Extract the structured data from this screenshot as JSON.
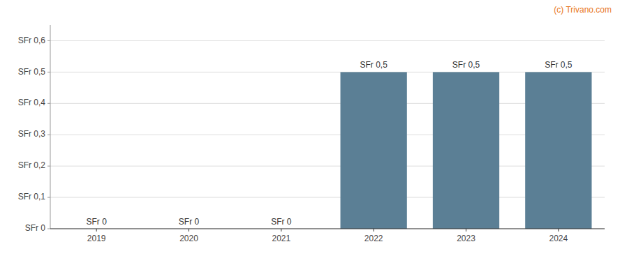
{
  "chart_data": {
    "type": "bar",
    "categories": [
      "2019",
      "2020",
      "2021",
      "2022",
      "2023",
      "2024"
    ],
    "values": [
      0,
      0,
      0,
      0.5,
      0.5,
      0.5
    ],
    "value_labels": [
      "SFr 0",
      "SFr 0",
      "SFr 0",
      "SFr 0,5",
      "SFr 0,5",
      "SFr 0,5"
    ],
    "data_labels": true,
    "color": "#5b7f95",
    "ylim": [
      0,
      0.65
    ],
    "yticks": [
      {
        "value": 0,
        "label": "SFr 0"
      },
      {
        "value": 0.1,
        "label": "SFr 0,1"
      },
      {
        "value": 0.2,
        "label": "SFr 0,2"
      },
      {
        "value": 0.3,
        "label": "SFr 0,3"
      },
      {
        "value": 0.4,
        "label": "SFr 0,4"
      },
      {
        "value": 0.5,
        "label": "SFr 0,5"
      },
      {
        "value": 0.6,
        "label": "SFr 0,6"
      }
    ],
    "grid": true,
    "annotations": [
      {
        "text": "(c) Trivano.com",
        "color": "#e87722"
      }
    ]
  }
}
